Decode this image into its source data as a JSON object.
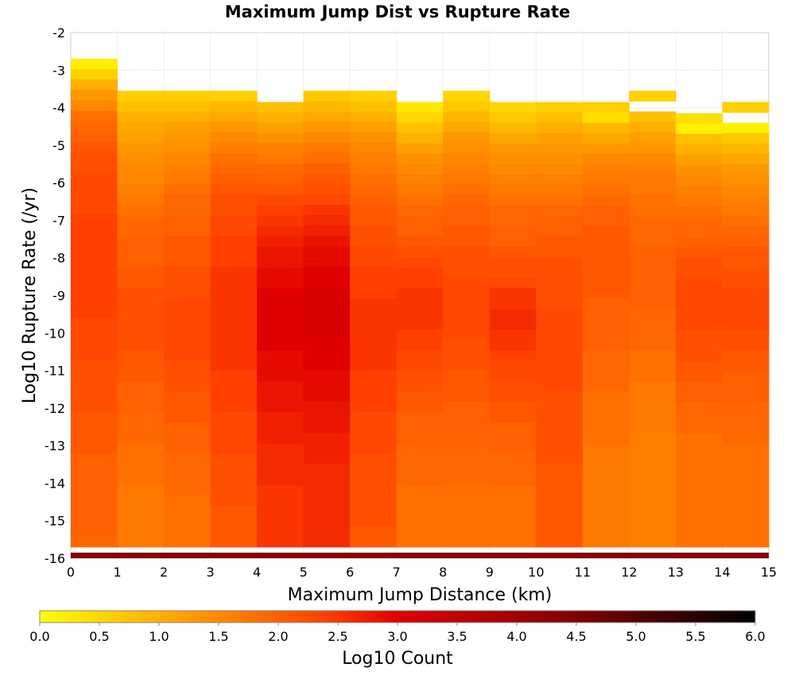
{
  "chart_data": {
    "type": "heatmap",
    "title": "Maximum Jump Dist vs Rupture Rate",
    "xlabel": "Maximum Jump Distance (km)",
    "ylabel": "Log10 Rupture Rate (/yr)",
    "xlim": [
      0,
      15
    ],
    "ylim": [
      -16,
      -2
    ],
    "x_ticks": [
      "0",
      "1",
      "2",
      "3",
      "4",
      "5",
      "6",
      "7",
      "8",
      "9",
      "10",
      "11",
      "12",
      "13",
      "14",
      "15"
    ],
    "y_ticks": [
      "-2",
      "-3",
      "-4",
      "-5",
      "-6",
      "-7",
      "-8",
      "-9",
      "-10",
      "-11",
      "-12",
      "-13",
      "-14",
      "-15",
      "-16"
    ],
    "colorbar": {
      "label": "Log10 Count",
      "range": [
        0,
        6
      ],
      "ticks": [
        "0.0",
        "0.5",
        "1.0",
        "1.5",
        "2.0",
        "2.5",
        "3.0",
        "3.5",
        "4.0",
        "4.5",
        "5.0",
        "5.5",
        "6.0"
      ],
      "colormap": [
        "#ffff00",
        "#ffa000",
        "#ff4000",
        "#e00000",
        "#800000",
        "#000000"
      ]
    },
    "x_bin_width": 1,
    "y_bin_height": 0.28,
    "columns": [
      {
        "x": 0.5,
        "y_top": -2.7,
        "y_bottom": -15.7,
        "values": [
          0.2,
          0.6,
          1.0,
          1.3,
          1.5,
          1.8,
          1.9,
          2.0,
          2.1,
          2.2,
          2.2,
          2.3,
          2.3,
          2.3,
          2.3,
          2.4,
          2.4,
          2.4,
          2.4,
          2.4,
          2.4,
          2.4,
          2.4,
          2.4,
          2.4,
          2.3,
          2.3,
          2.3,
          2.3,
          2.2,
          2.2,
          2.2,
          2.2,
          2.2,
          2.1,
          2.1,
          2.1,
          2.1,
          2.0,
          2.0,
          2.0,
          2.0,
          2.0,
          2.0,
          2.0,
          2.0,
          1.9
        ]
      },
      {
        "x": 1.5,
        "y_top": -3.55,
        "y_bottom": -15.7,
        "values": [
          0.6,
          0.8,
          1.0,
          1.1,
          1.2,
          1.3,
          1.4,
          1.5,
          1.5,
          1.6,
          1.7,
          1.8,
          1.9,
          1.9,
          2.0,
          2.0,
          2.0,
          2.1,
          2.1,
          2.2,
          2.2,
          2.2,
          2.2,
          2.2,
          2.2,
          2.1,
          2.1,
          2.1,
          2.0,
          2.0,
          2.0,
          1.9,
          1.9,
          1.9,
          1.8,
          1.8,
          1.8,
          1.8,
          1.7,
          1.7,
          1.7,
          1.7,
          1.7,
          1.7
        ]
      },
      {
        "x": 2.5,
        "y_top": -3.55,
        "y_bottom": -15.7,
        "values": [
          0.6,
          0.8,
          1.0,
          1.2,
          1.3,
          1.4,
          1.5,
          1.6,
          1.7,
          1.8,
          1.9,
          1.9,
          2.0,
          2.0,
          2.1,
          2.1,
          2.1,
          2.2,
          2.2,
          2.2,
          2.3,
          2.3,
          2.3,
          2.3,
          2.3,
          2.3,
          2.2,
          2.2,
          2.2,
          2.1,
          2.1,
          2.1,
          2.0,
          2.0,
          2.0,
          1.9,
          1.9,
          1.9,
          1.9,
          1.8,
          1.8,
          1.8,
          1.8,
          1.8
        ]
      },
      {
        "x": 3.5,
        "y_top": -3.55,
        "y_bottom": -15.7,
        "values": [
          0.6,
          0.9,
          1.1,
          1.3,
          1.5,
          1.6,
          1.8,
          1.9,
          2.0,
          2.1,
          2.2,
          2.2,
          2.3,
          2.3,
          2.4,
          2.4,
          2.4,
          2.5,
          2.5,
          2.5,
          2.5,
          2.5,
          2.5,
          2.5,
          2.5,
          2.5,
          2.5,
          2.4,
          2.4,
          2.4,
          2.4,
          2.3,
          2.3,
          2.3,
          2.3,
          2.2,
          2.2,
          2.2,
          2.2,
          2.2,
          2.1,
          2.1,
          2.1,
          2.1
        ]
      },
      {
        "x": 4.5,
        "y_top": -3.85,
        "y_bottom": -15.7,
        "values": [
          0.8,
          1.0,
          1.2,
          1.4,
          1.6,
          1.7,
          1.9,
          2.0,
          2.1,
          2.3,
          2.4,
          2.5,
          2.6,
          2.7,
          2.8,
          2.8,
          2.9,
          2.9,
          3.0,
          3.0,
          3.0,
          3.0,
          3.0,
          3.0,
          2.9,
          2.9,
          2.9,
          2.8,
          2.8,
          2.8,
          2.7,
          2.7,
          2.7,
          2.6,
          2.6,
          2.6,
          2.6,
          2.5,
          2.5,
          2.5,
          2.5,
          2.5,
          2.5
        ]
      },
      {
        "x": 5.5,
        "y_top": -3.55,
        "y_bottom": -15.7,
        "values": [
          0.7,
          0.9,
          1.1,
          1.3,
          1.5,
          1.7,
          1.8,
          2.0,
          2.1,
          2.2,
          2.3,
          2.5,
          2.6,
          2.7,
          2.8,
          2.9,
          2.9,
          3.0,
          3.0,
          3.1,
          3.1,
          3.1,
          3.1,
          3.1,
          3.0,
          3.0,
          3.0,
          2.9,
          2.9,
          2.9,
          2.8,
          2.8,
          2.8,
          2.7,
          2.7,
          2.7,
          2.6,
          2.6,
          2.6,
          2.6,
          2.6,
          2.6,
          2.6,
          2.6
        ]
      },
      {
        "x": 6.5,
        "y_top": -3.55,
        "y_bottom": -15.7,
        "values": [
          0.6,
          0.8,
          1.0,
          1.2,
          1.4,
          1.5,
          1.6,
          1.7,
          1.8,
          1.9,
          2.0,
          2.1,
          2.1,
          2.2,
          2.2,
          2.3,
          2.3,
          2.4,
          2.4,
          2.4,
          2.5,
          2.5,
          2.5,
          2.5,
          2.5,
          2.5,
          2.5,
          2.4,
          2.4,
          2.4,
          2.4,
          2.3,
          2.3,
          2.3,
          2.3,
          2.2,
          2.2,
          2.2,
          2.2,
          2.2,
          2.2,
          2.2,
          2.1,
          2.1
        ]
      },
      {
        "x": 7.5,
        "y_top": -3.85,
        "y_bottom": -15.7,
        "values": [
          0.3,
          0.5,
          0.8,
          1.0,
          1.2,
          1.4,
          1.5,
          1.6,
          1.7,
          1.8,
          1.9,
          2.0,
          2.0,
          2.1,
          2.2,
          2.3,
          2.4,
          2.4,
          2.5,
          2.5,
          2.5,
          2.5,
          2.4,
          2.4,
          2.3,
          2.3,
          2.2,
          2.2,
          2.1,
          2.1,
          2.0,
          2.0,
          2.0,
          1.9,
          1.9,
          1.9,
          1.9,
          1.8,
          1.8,
          1.8,
          1.8,
          1.8,
          1.8
        ]
      },
      {
        "x": 8.5,
        "y_top": -3.55,
        "y_bottom": -15.7,
        "values": [
          0.5,
          0.7,
          0.9,
          1.1,
          1.3,
          1.4,
          1.5,
          1.6,
          1.7,
          1.8,
          1.9,
          2.0,
          2.0,
          2.1,
          2.1,
          2.2,
          2.2,
          2.2,
          2.3,
          2.3,
          2.3,
          2.3,
          2.3,
          2.3,
          2.2,
          2.2,
          2.2,
          2.1,
          2.1,
          2.1,
          2.0,
          2.0,
          2.0,
          2.0,
          1.9,
          1.9,
          1.9,
          1.9,
          1.8,
          1.8,
          1.8,
          1.8,
          1.8,
          1.8
        ]
      },
      {
        "x": 9.5,
        "y_top": -3.85,
        "y_bottom": -15.7,
        "values": [
          0.5,
          0.7,
          0.9,
          1.1,
          1.3,
          1.4,
          1.5,
          1.6,
          1.7,
          1.8,
          1.9,
          1.9,
          2.0,
          2.0,
          2.1,
          2.2,
          2.2,
          2.3,
          2.5,
          2.5,
          2.6,
          2.6,
          2.5,
          2.5,
          2.4,
          2.3,
          2.3,
          2.2,
          2.2,
          2.1,
          2.1,
          2.0,
          2.0,
          2.0,
          1.9,
          1.9,
          1.9,
          1.8,
          1.8,
          1.8,
          1.8,
          1.8,
          1.8
        ]
      },
      {
        "x": 10.5,
        "y_top": -3.85,
        "y_bottom": -15.7,
        "values": [
          0.6,
          0.8,
          1.0,
          1.2,
          1.3,
          1.4,
          1.5,
          1.6,
          1.7,
          1.8,
          1.9,
          2.0,
          2.0,
          2.1,
          2.1,
          2.2,
          2.2,
          2.2,
          2.2,
          2.2,
          2.3,
          2.3,
          2.3,
          2.3,
          2.3,
          2.3,
          2.3,
          2.3,
          2.2,
          2.2,
          2.2,
          2.2,
          2.2,
          2.2,
          2.2,
          2.1,
          2.1,
          2.1,
          2.1,
          2.1,
          2.1,
          2.1,
          2.1
        ]
      },
      {
        "x": 11.5,
        "y_top": -3.85,
        "y_bottom": -15.7,
        "values": [
          0.6,
          0.4,
          0.9,
          1.1,
          1.3,
          1.5,
          1.6,
          1.7,
          1.8,
          1.9,
          2.0,
          2.0,
          2.1,
          2.1,
          2.1,
          2.1,
          2.1,
          2.1,
          2.1,
          2.0,
          2.0,
          2.0,
          2.0,
          2.0,
          1.9,
          1.9,
          1.9,
          1.9,
          1.8,
          1.8,
          1.8,
          1.8,
          1.8,
          1.7,
          1.7,
          1.7,
          1.7,
          1.7,
          1.7,
          1.7,
          1.7,
          1.7,
          1.7
        ]
      },
      {
        "x": 12.5,
        "y_top": -3.55,
        "y_bottom": -15.7,
        "values": [
          0.6,
          -1,
          0.8,
          1.0,
          1.2,
          1.3,
          1.5,
          1.6,
          1.7,
          1.7,
          1.8,
          1.8,
          1.9,
          1.9,
          1.9,
          2.0,
          2.0,
          2.0,
          2.0,
          2.0,
          2.0,
          1.9,
          1.9,
          1.9,
          1.9,
          1.8,
          1.8,
          1.8,
          1.7,
          1.7,
          1.7,
          1.7,
          1.7,
          1.6,
          1.6,
          1.6,
          1.6,
          1.6,
          1.6,
          1.6,
          1.6,
          1.6,
          1.6,
          1.6
        ]
      },
      {
        "x": 13.5,
        "y_top": -4.15,
        "y_bottom": -15.7,
        "values": [
          0.4,
          0.2,
          0.8,
          1.0,
          1.2,
          1.4,
          1.5,
          1.6,
          1.7,
          1.8,
          1.9,
          1.9,
          2.0,
          2.1,
          2.2,
          2.2,
          2.3,
          2.3,
          2.3,
          2.3,
          2.3,
          2.2,
          2.2,
          2.2,
          2.1,
          2.1,
          2.0,
          2.0,
          1.9,
          1.9,
          1.9,
          1.8,
          1.8,
          1.8,
          1.8,
          1.8,
          1.8,
          1.8,
          1.8,
          1.8,
          1.8,
          1.8
        ]
      },
      {
        "x": 14.5,
        "y_top": -3.85,
        "y_bottom": -15.7,
        "values": [
          0.6,
          -1,
          0.2,
          0.7,
          0.9,
          1.1,
          1.3,
          1.4,
          1.5,
          1.6,
          1.7,
          1.8,
          1.9,
          2.0,
          2.1,
          2.1,
          2.2,
          2.2,
          2.3,
          2.3,
          2.3,
          2.3,
          2.2,
          2.2,
          2.1,
          2.1,
          2.0,
          2.0,
          2.0,
          1.9,
          1.9,
          1.9,
          1.9,
          1.8,
          1.8,
          1.8,
          1.8,
          1.8,
          1.8,
          1.8,
          1.8,
          1.8,
          1.8
        ]
      }
    ],
    "bottom_row": {
      "y_top": -15.85,
      "y_bottom": -16.0,
      "value": 4.4
    }
  }
}
